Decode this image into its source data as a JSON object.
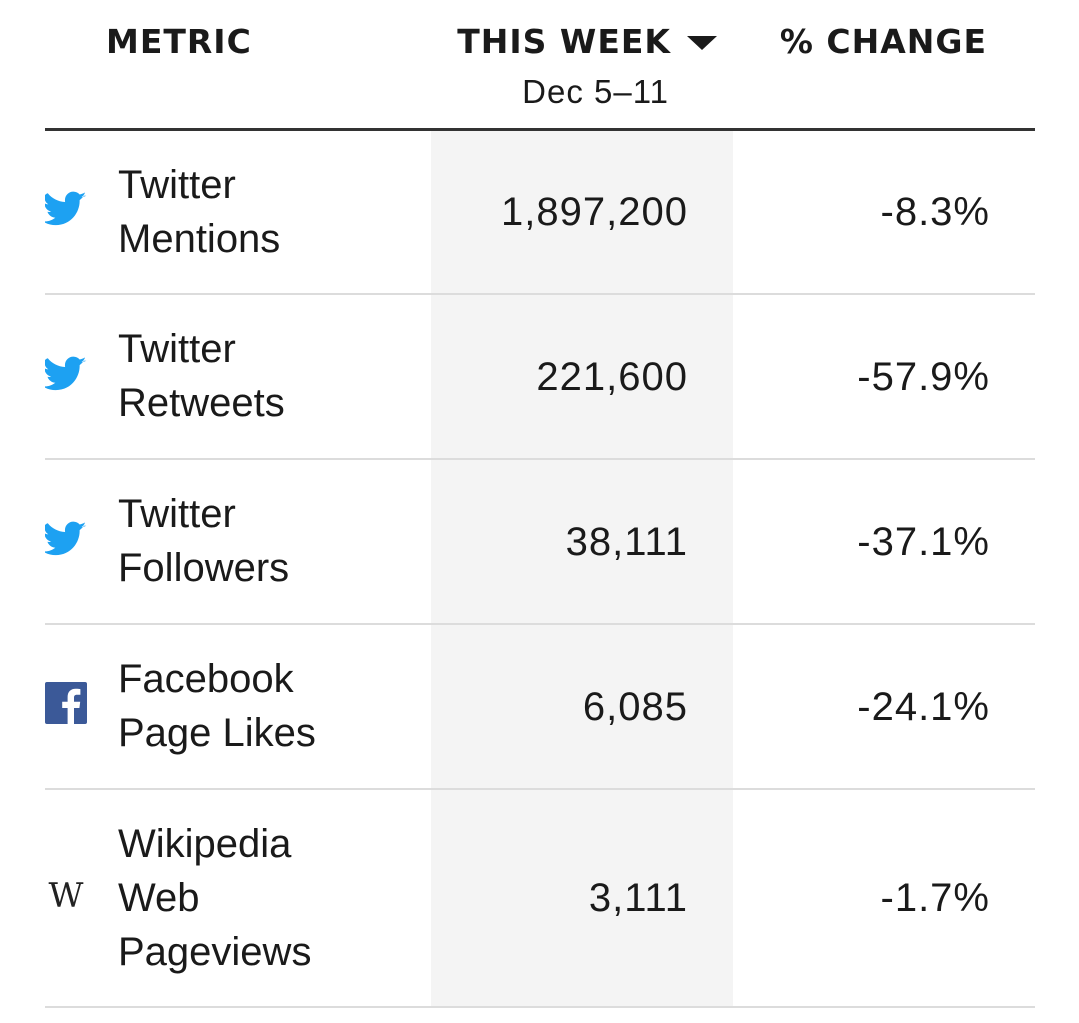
{
  "header": {
    "metric_label": "METRIC",
    "this_week_label": "THIS WEEK",
    "date_range": "Dec 5–11",
    "change_label": "% CHANGE"
  },
  "colors": {
    "twitter_blue": "#1da1f2",
    "facebook_blue": "#3b5998",
    "band_gray": "#f4f4f4",
    "rule_dark": "#333333",
    "rule_light": "#dcdcdc"
  },
  "rows": [
    {
      "icon": "twitter-icon",
      "label_line1": "Twitter",
      "label_line2": "Mentions",
      "value": "1,897,200",
      "change": "-8.3%"
    },
    {
      "icon": "twitter-icon",
      "label_line1": "Twitter",
      "label_line2": "Retweets",
      "value": "221,600",
      "change": "-57.9%"
    },
    {
      "icon": "twitter-icon",
      "label_line1": "Twitter",
      "label_line2": "Followers",
      "value": "38,111",
      "change": "-37.1%"
    },
    {
      "icon": "facebook-icon",
      "label_line1": "Facebook",
      "label_line2": "Page Likes",
      "value": "6,085",
      "change": "-24.1%"
    },
    {
      "icon": "wikipedia-icon",
      "label_line1": "Wikipedia",
      "label_line2": "Web",
      "label_line3": "Pageviews",
      "value": "3,111",
      "change": "-1.7%",
      "icon_glyph": "W"
    }
  ]
}
